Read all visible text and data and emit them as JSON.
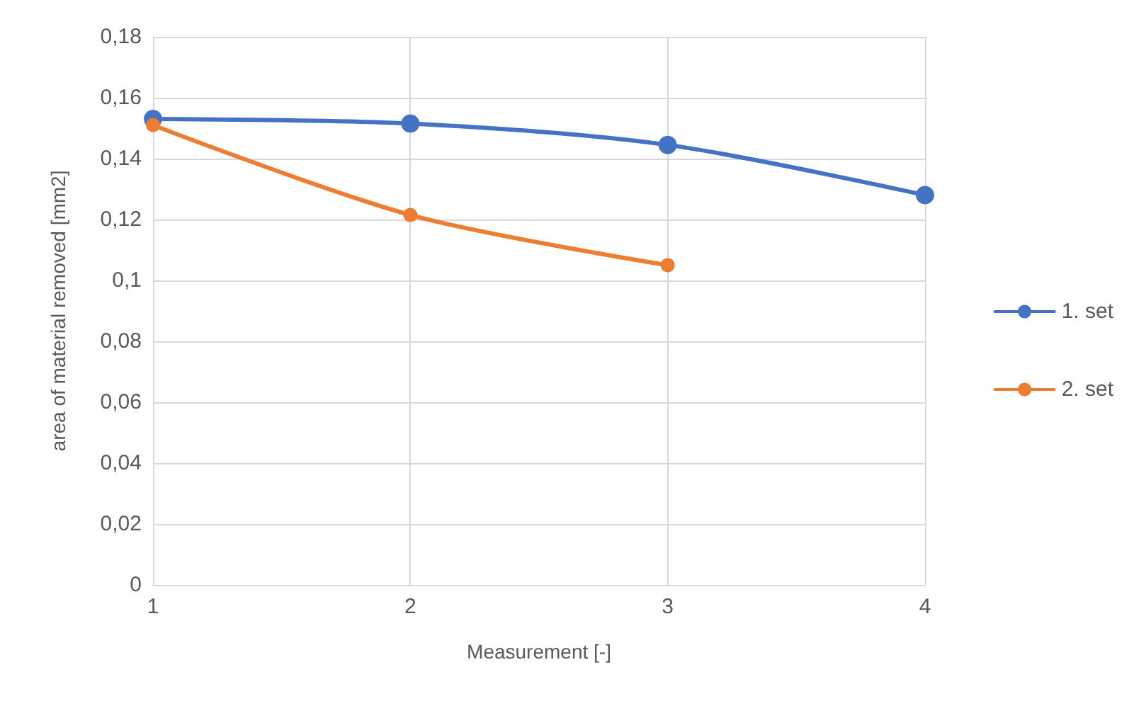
{
  "chart_data": {
    "type": "line",
    "xlabel": "Measurement [-]",
    "ylabel": "area of material removed [mm2]",
    "series": [
      {
        "name": "1. set",
        "color": "#4472c4",
        "x": [
          1,
          2,
          3,
          4
        ],
        "values": [
          0.153,
          0.1515,
          0.1445,
          0.128
        ]
      },
      {
        "name": "2. set",
        "color": "#ed7d31",
        "x": [
          1,
          2,
          3
        ],
        "values": [
          0.151,
          0.1215,
          0.105
        ]
      }
    ],
    "xlim": [
      1,
      4
    ],
    "xticks": [
      1,
      2,
      3,
      4
    ],
    "ylim": [
      0,
      0.18
    ],
    "yticks": [
      0,
      {
        "value": 0.02,
        "label": "0,02"
      },
      {
        "value": 0.04,
        "label": "0,04"
      },
      {
        "value": 0.06,
        "label": "0,06"
      },
      {
        "value": 0.08,
        "label": "0,08"
      },
      {
        "value": 0.1,
        "label": "0,1"
      },
      {
        "value": 0.12,
        "label": "0,12"
      },
      {
        "value": 0.14,
        "label": "0,14"
      },
      {
        "value": 0.16,
        "label": "0,16"
      },
      {
        "value": 0.18,
        "label": "0,18"
      }
    ],
    "grid": true,
    "legend": "right",
    "marker": "circle",
    "line_style": "solid"
  }
}
